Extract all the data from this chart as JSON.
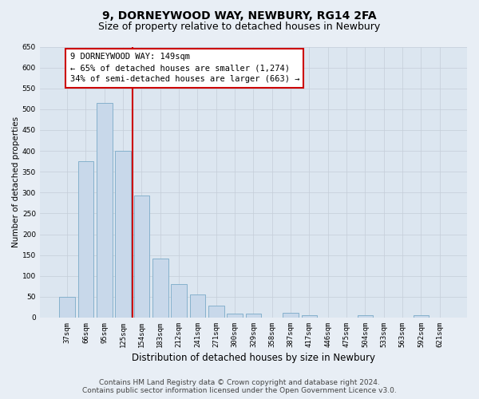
{
  "title": "9, DORNEYWOOD WAY, NEWBURY, RG14 2FA",
  "subtitle": "Size of property relative to detached houses in Newbury",
  "xlabel": "Distribution of detached houses by size in Newbury",
  "ylabel": "Number of detached properties",
  "bar_labels": [
    "37sqm",
    "66sqm",
    "95sqm",
    "125sqm",
    "154sqm",
    "183sqm",
    "212sqm",
    "241sqm",
    "271sqm",
    "300sqm",
    "329sqm",
    "358sqm",
    "387sqm",
    "417sqm",
    "446sqm",
    "475sqm",
    "504sqm",
    "533sqm",
    "563sqm",
    "592sqm",
    "621sqm"
  ],
  "bar_values": [
    50,
    375,
    515,
    400,
    293,
    142,
    80,
    55,
    28,
    10,
    10,
    0,
    12,
    5,
    0,
    0,
    5,
    0,
    0,
    5,
    0
  ],
  "bar_color": "#c8d8ea",
  "bar_edge_color": "#7aaac8",
  "vline_x": 3.5,
  "vline_color": "#cc0000",
  "annotation_text": "9 DORNEYWOOD WAY: 149sqm\n← 65% of detached houses are smaller (1,274)\n34% of semi-detached houses are larger (663) →",
  "annotation_box_facecolor": "#ffffff",
  "annotation_box_edgecolor": "#cc0000",
  "ylim": [
    0,
    650
  ],
  "yticks": [
    0,
    50,
    100,
    150,
    200,
    250,
    300,
    350,
    400,
    450,
    500,
    550,
    600,
    650
  ],
  "grid_color": "#c5cdd8",
  "plot_bg_color": "#dce6f0",
  "fig_bg_color": "#e8eef5",
  "footer_text": "Contains HM Land Registry data © Crown copyright and database right 2024.\nContains public sector information licensed under the Open Government Licence v3.0.",
  "title_fontsize": 10,
  "subtitle_fontsize": 9,
  "xlabel_fontsize": 8.5,
  "ylabel_fontsize": 7.5,
  "tick_fontsize": 6.5,
  "annotation_fontsize": 7.5,
  "footer_fontsize": 6.5
}
